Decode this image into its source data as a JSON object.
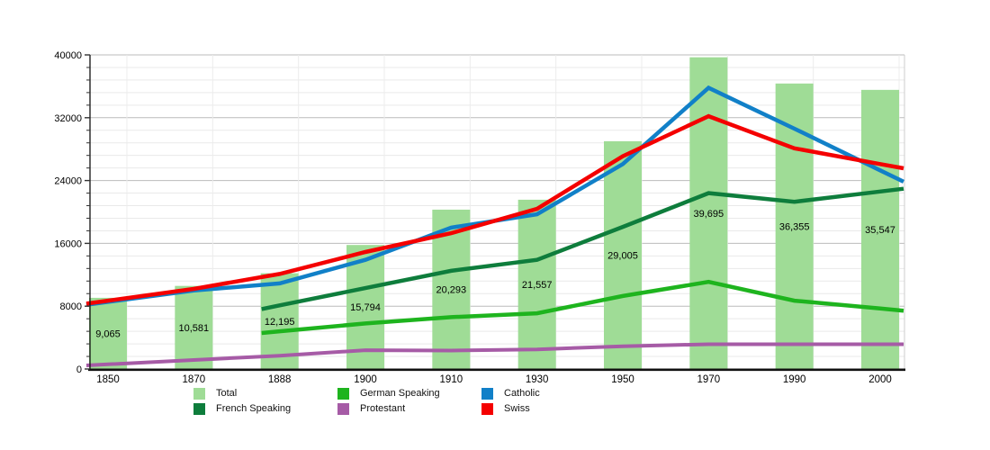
{
  "chart_data": {
    "type": "bar+line",
    "title": "",
    "xlabel": "",
    "ylabel": "",
    "categories": [
      "1850",
      "1870",
      "1888",
      "1900",
      "1910",
      "1930",
      "1950",
      "1970",
      "1990",
      "2000"
    ],
    "y_axis": {
      "ylim": [
        0,
        40000
      ],
      "major_step": 8000,
      "minor_step": 1600,
      "tick_labels": [
        "0",
        "8000",
        "16000",
        "24000",
        "32000",
        "40000"
      ],
      "grid": "on"
    },
    "bar_series": {
      "name": "Total",
      "color": "#9FDC96",
      "values": [
        9065,
        10581,
        12195,
        15794,
        20293,
        21557,
        29005,
        39695,
        36355,
        35547
      ],
      "value_labels": [
        "9,065",
        "10,581",
        "12,195",
        "15,794",
        "20,293",
        "21,557",
        "29,005",
        "39,695",
        "36,355",
        "35,547"
      ]
    },
    "line_series": [
      {
        "name": "German Speaking",
        "color": "#1EB41E",
        "stroke_width": 4.5,
        "values": [
          null,
          null,
          4800,
          5800,
          6600,
          7100,
          9300,
          11100,
          8700,
          7700
        ]
      },
      {
        "name": "Protestant",
        "color": "#A65BA6",
        "stroke_width": 4,
        "values": [
          600,
          1150,
          1700,
          2400,
          2350,
          2500,
          2900,
          3150,
          3150,
          3150
        ]
      },
      {
        "name": "French Speaking",
        "color": "#0E7D3C",
        "stroke_width": 4.5,
        "values": [
          null,
          null,
          8100,
          10300,
          12500,
          13900,
          18100,
          22400,
          21300,
          22600
        ]
      },
      {
        "name": "Catholic",
        "color": "#1180C8",
        "stroke_width": 4.5,
        "values": [
          8550,
          10000,
          10900,
          13900,
          18000,
          19700,
          26100,
          35800,
          30600,
          25300
        ]
      },
      {
        "name": "Swiss",
        "color": "#F40000",
        "stroke_width": 4.5,
        "values": [
          8700,
          10200,
          12100,
          14900,
          17300,
          20400,
          27100,
          32200,
          28100,
          26100
        ]
      }
    ],
    "legend": {
      "position": "bottom",
      "items": [
        {
          "label": "Total",
          "color": "#9FDC96"
        },
        {
          "label": "German Speaking",
          "color": "#1EB41E"
        },
        {
          "label": "Catholic",
          "color": "#1180C8"
        },
        {
          "label": "French Speaking",
          "color": "#0E7D3C"
        },
        {
          "label": "Protestant",
          "color": "#A65BA6"
        },
        {
          "label": "Swiss",
          "color": "#F40000"
        }
      ]
    },
    "grid_colors": {
      "major": "#bbbbbb",
      "minor": "#e9e9e9",
      "vertical_guide": "#ececec",
      "right_border": "#cccccc",
      "axis": "#111111"
    }
  }
}
